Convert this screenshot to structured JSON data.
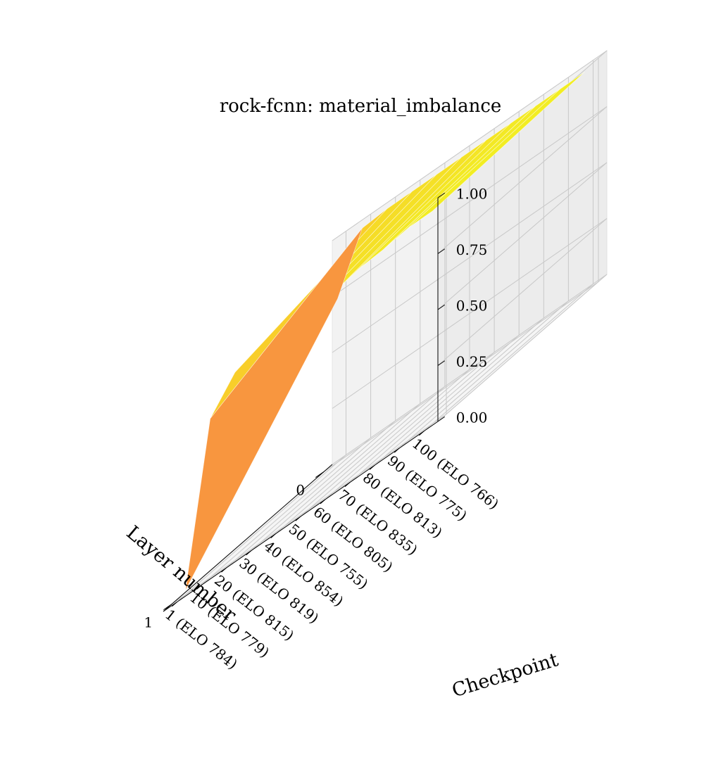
{
  "chart_data": {
    "type": "surface3d",
    "title": "rock-fcnn: material_imbalance",
    "xlabel": "Checkpoint",
    "ylabel": "Layer number",
    "zlabel": "",
    "checkpoints": [
      "1 (ELO 784)",
      "10 (ELO 779)",
      "20 (ELO 815)",
      "30 (ELO 819)",
      "40 (ELO 854)",
      "50 (ELO 755)",
      "60 (ELO 805)",
      "70 (ELO 835)",
      "80 (ELO 813)",
      "90 (ELO 775)",
      "100 (ELO 766)"
    ],
    "layers": [
      "0",
      "1"
    ],
    "z_ticks": [
      "0.00",
      "0.25",
      "0.50",
      "0.75",
      "1.00"
    ],
    "zlim": [
      0,
      1
    ],
    "values": [
      [
        0.73,
        0.02
      ],
      [
        0.97,
        0.71
      ],
      [
        0.98,
        0.84
      ],
      [
        0.98,
        0.85
      ],
      [
        0.98,
        0.87
      ],
      [
        0.98,
        0.88
      ],
      [
        0.98,
        0.89
      ],
      [
        0.98,
        0.92
      ],
      [
        0.98,
        0.93
      ],
      [
        0.98,
        0.95
      ],
      [
        0.98,
        0.95
      ]
    ],
    "grid": true,
    "colormap": [
      "#0d0887",
      "#8b0aa5",
      "#e8725a",
      "#f89540",
      "#fdb42f",
      "#f0f921"
    ],
    "pane_color": "#f2f2f2",
    "grid_color": "#c8c8c8"
  }
}
